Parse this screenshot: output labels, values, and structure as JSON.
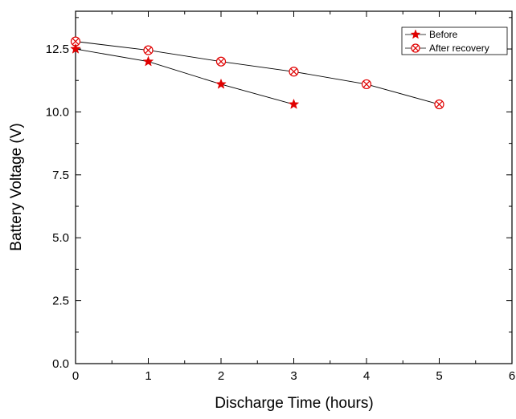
{
  "chart_data": {
    "type": "line",
    "title": "",
    "xlabel": "Discharge Time (hours)",
    "ylabel": "Battery Voltage (V)",
    "xlim": [
      0,
      6
    ],
    "ylim": [
      0,
      14
    ],
    "xticks": [
      "0",
      "1",
      "2",
      "3",
      "4",
      "5",
      "6"
    ],
    "yticks": [
      "0.0",
      "2.5",
      "5.0",
      "7.5",
      "10.0",
      "12.5"
    ],
    "grid": false,
    "legend_position": "top-right",
    "series": [
      {
        "name": "Before",
        "marker": "star",
        "color": "#e00000",
        "x": [
          0,
          1,
          2,
          3
        ],
        "y": [
          12.5,
          12.0,
          11.1,
          10.3
        ]
      },
      {
        "name": "After recovery",
        "marker": "circle-x",
        "color": "#e00000",
        "x": [
          0,
          1,
          2,
          3,
          4,
          5
        ],
        "y": [
          12.8,
          12.45,
          12.0,
          11.6,
          11.1,
          10.3
        ]
      }
    ]
  }
}
